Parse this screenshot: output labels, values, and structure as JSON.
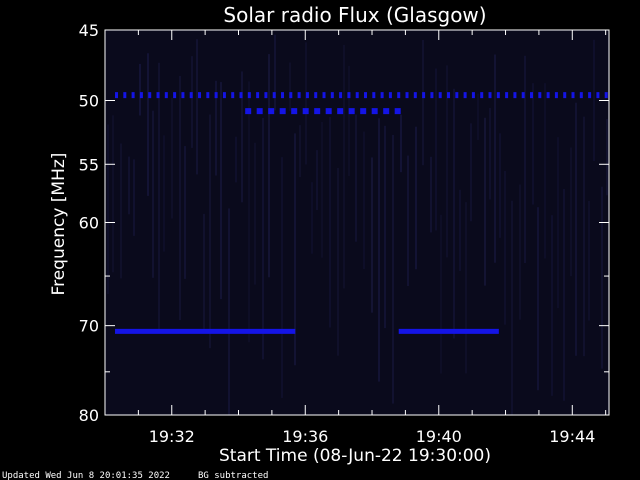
{
  "chart_data": {
    "type": "heatmap",
    "title": "Solar radio Flux (Glasgow)",
    "xlabel": "Start Time (08-Jun-22 19:30:00)",
    "ylabel": "Frequency [MHz]",
    "x_range_minutes": [
      30,
      45.1
    ],
    "x_ticks": [
      {
        "minute": 32,
        "label": "19:32"
      },
      {
        "minute": 36,
        "label": "19:36"
      },
      {
        "minute": 40,
        "label": "19:40"
      },
      {
        "minute": 44,
        "label": "19:44"
      }
    ],
    "y_scale": "log",
    "ylim": [
      45,
      80
    ],
    "y_ticks": [
      45,
      50,
      55,
      60,
      70,
      80
    ],
    "y_minor_ticks": [
      65,
      75
    ],
    "background_color": "#0a0a1c",
    "signal_color": "#1414e6",
    "signals": [
      {
        "frequency_mhz": 49.6,
        "start_minute": 30.3,
        "end_minute": 45.0,
        "pattern": "dashed"
      },
      {
        "frequency_mhz": 50.8,
        "start_minute": 34.2,
        "end_minute": 39.0,
        "pattern": "dashed"
      },
      {
        "frequency_mhz": 70.6,
        "start_minute": 30.3,
        "end_minute": 35.7,
        "pattern": "solid"
      },
      {
        "frequency_mhz": 70.6,
        "start_minute": 38.8,
        "end_minute": 41.8,
        "pattern": "solid"
      }
    ]
  },
  "footer": {
    "updated": "Updated Wed Jun  8 20:01:35 2022",
    "note": "BG subtracted"
  }
}
